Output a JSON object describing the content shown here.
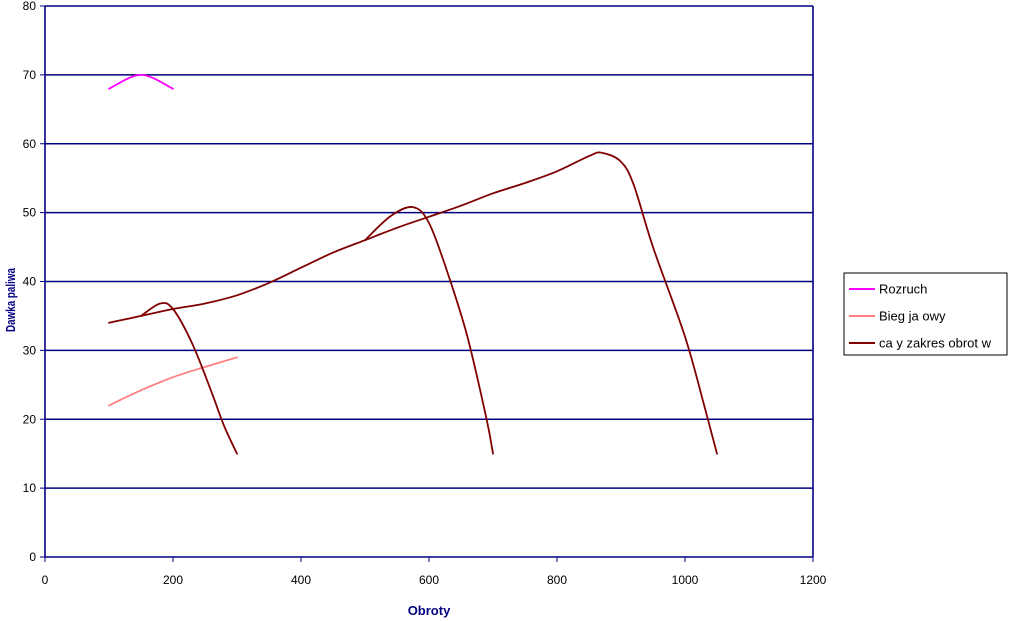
{
  "chart_data": {
    "type": "line",
    "xlabel": "Obroty",
    "ylabel": "Dawka paliwa",
    "xlim": [
      0,
      1200
    ],
    "ylim": [
      0,
      80
    ],
    "x_ticks": [
      "0",
      "200",
      "400",
      "600",
      "800",
      "1000",
      "1200"
    ],
    "y_ticks": [
      "0",
      "10",
      "20",
      "30",
      "40",
      "50",
      "60",
      "70",
      "80"
    ],
    "grid": "horizontal",
    "legend_position": "right",
    "series": [
      {
        "name": "Rozruch",
        "color": "#ff00ff",
        "points": [
          [
            100,
            68
          ],
          [
            150,
            70
          ],
          [
            200,
            68
          ]
        ]
      },
      {
        "name": "Bieg ja owy",
        "color": "#ff8080",
        "points": [
          [
            100,
            22
          ],
          [
            150,
            24.2
          ],
          [
            200,
            26.1
          ],
          [
            250,
            27.6
          ],
          [
            300,
            29
          ]
        ]
      },
      {
        "name": "ca y zakres obrot  w",
        "color": "#800000",
        "segments": [
          [
            [
              100,
              34
            ],
            [
              150,
              35
            ],
            [
              200,
              36
            ],
            [
              250,
              36.8
            ],
            [
              300,
              38
            ],
            [
              350,
              39.8
            ],
            [
              400,
              42
            ],
            [
              450,
              44.2
            ],
            [
              500,
              46
            ],
            [
              550,
              47.8
            ],
            [
              600,
              49.4
            ],
            [
              650,
              51
            ],
            [
              700,
              52.8
            ],
            [
              750,
              54.3
            ],
            [
              800,
              56
            ],
            [
              850,
              58.2
            ],
            [
              870,
              58.7
            ],
            [
              900,
              57.4
            ],
            [
              920,
              54
            ],
            [
              950,
              45
            ],
            [
              1000,
              32
            ],
            [
              1030,
              22
            ],
            [
              1050,
              15
            ]
          ],
          [
            [
              150,
              35
            ],
            [
              180,
              36.8
            ],
            [
              200,
              36
            ],
            [
              230,
              31
            ],
            [
              260,
              24
            ],
            [
              280,
              19
            ],
            [
              300,
              15
            ]
          ],
          [
            [
              500,
              46
            ],
            [
              540,
              49.5
            ],
            [
              575,
              50.8
            ],
            [
              600,
              48.5
            ],
            [
              630,
              41
            ],
            [
              660,
              32
            ],
            [
              690,
              20
            ],
            [
              700,
              15
            ]
          ]
        ]
      }
    ]
  }
}
